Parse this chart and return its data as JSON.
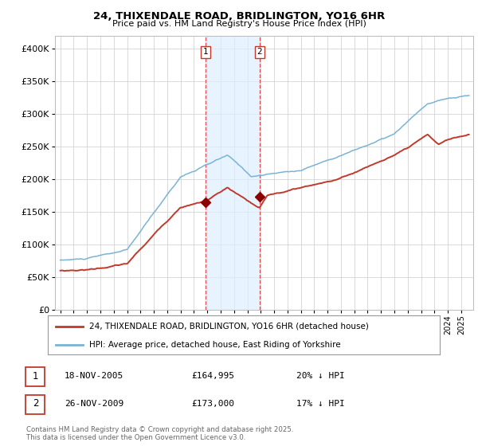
{
  "title": "24, THIXENDALE ROAD, BRIDLINGTON, YO16 6HR",
  "subtitle": "Price paid vs. HM Land Registry's House Price Index (HPI)",
  "legend_line1": "24, THIXENDALE ROAD, BRIDLINGTON, YO16 6HR (detached house)",
  "legend_line2": "HPI: Average price, detached house, East Riding of Yorkshire",
  "transaction1_date": "18-NOV-2005",
  "transaction1_price": 164995,
  "transaction1_hpi": "20% ↓ HPI",
  "transaction2_date": "26-NOV-2009",
  "transaction2_price": 173000,
  "transaction2_hpi": "17% ↓ HPI",
  "footer": "Contains HM Land Registry data © Crown copyright and database right 2025.\nThis data is licensed under the Open Government Licence v3.0.",
  "hpi_color": "#7ab3d4",
  "price_color": "#c0392b",
  "marker_color": "#8b0000",
  "background_color": "#ffffff",
  "grid_color": "#cccccc",
  "shade_color": "#ddeeff",
  "vline_color": "#e05050",
  "ylim": [
    0,
    420000
  ],
  "start_year": 1995,
  "end_year": 2025,
  "trans1_year": 2005.88,
  "trans2_year": 2009.9
}
